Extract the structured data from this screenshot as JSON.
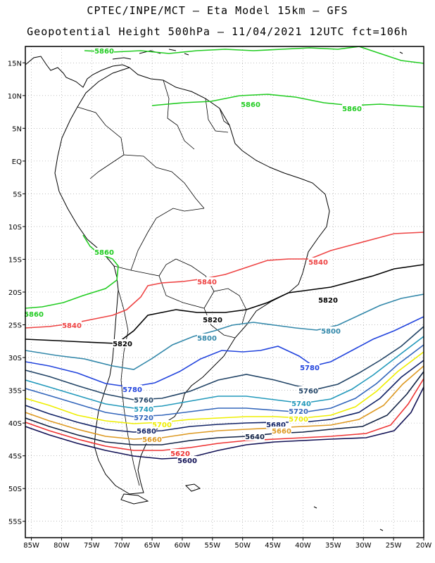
{
  "title_line1": "CPTEC/INPE/MCT –  Eta Model 15km – GFS",
  "title_line2": "Geopotential Height 500hPa – 11/04/2021 12UTC fct=106h",
  "lat_labels": [
    "15N",
    "10N",
    "5N",
    "EQ",
    "5S",
    "10S",
    "15S",
    "20S",
    "25S",
    "30S",
    "35S",
    "40S",
    "45S",
    "50S",
    "55S"
  ],
  "lon_labels": [
    "85W",
    "80W",
    "75W",
    "70W",
    "65W",
    "60W",
    "55W",
    "50W",
    "45W",
    "40W",
    "35W",
    "30W",
    "25W",
    "20W"
  ],
  "contours": [
    {
      "value": "5860",
      "color": "#22cc22"
    },
    {
      "value": "5840",
      "color": "#ee4444"
    },
    {
      "value": "5820",
      "color": "#000000"
    },
    {
      "value": "5800",
      "color": "#3388aa"
    },
    {
      "value": "5780",
      "color": "#2244dd"
    },
    {
      "value": "5760",
      "color": "#224466"
    },
    {
      "value": "5740",
      "color": "#2299bb"
    },
    {
      "value": "5720",
      "color": "#3366bb"
    },
    {
      "value": "5700",
      "color": "#eeee00"
    },
    {
      "value": "5680",
      "color": "#112266"
    },
    {
      "value": "5660",
      "color": "#dd9922"
    },
    {
      "value": "5640",
      "color": "#112244"
    },
    {
      "value": "5620",
      "color": "#ee3333"
    },
    {
      "value": "5600",
      "color": "#111155"
    }
  ]
}
